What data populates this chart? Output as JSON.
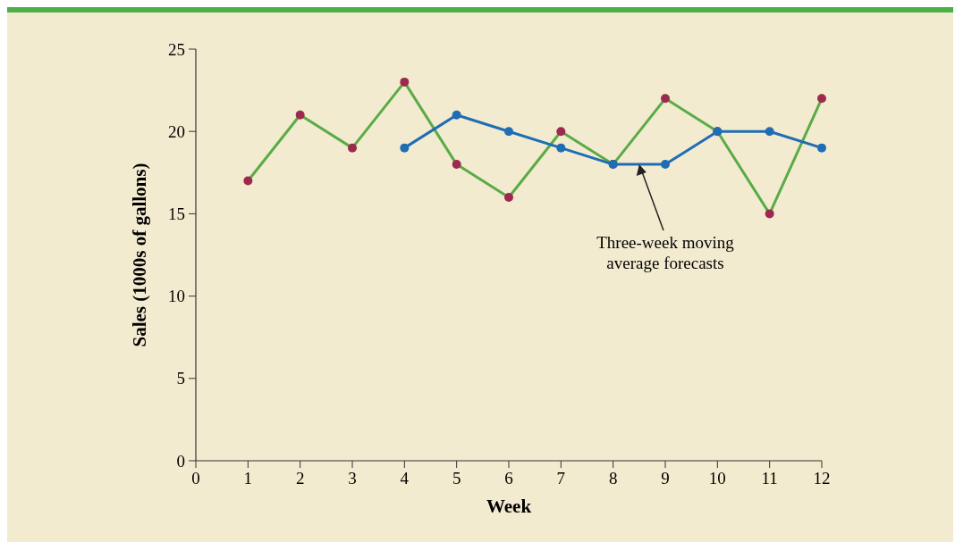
{
  "chart_data": {
    "type": "line",
    "xlabel": "Week",
    "ylabel": "Sales (1000s of gallons)",
    "x": [
      1,
      2,
      3,
      4,
      5,
      6,
      7,
      8,
      9,
      10,
      11,
      12
    ],
    "series": [
      {
        "color": "#5aab46",
        "colors": [
          "#9b2a4e",
          "#9b2a4e",
          "#9b2a4e",
          "#9b2a4e",
          "#9b2a4e",
          "#9b2a4e",
          "#9b2a4e",
          "#9b2a4e",
          "#9b2a4e",
          "#9b2a4e",
          "#9b2a4e",
          "#9b2a4e"
        ],
        "values": [
          17,
          21,
          19,
          23,
          18,
          16,
          20,
          18,
          22,
          20,
          15,
          22
        ]
      },
      {
        "color": "#1f6db5",
        "values": [
          null,
          null,
          null,
          19,
          21,
          20,
          19,
          18,
          18,
          20,
          20,
          19
        ]
      }
    ],
    "xlim": [
      0,
      12
    ],
    "xticks": [
      0,
      1,
      2,
      3,
      4,
      5,
      6,
      7,
      8,
      9,
      10,
      11,
      12
    ],
    "ylim": [
      0,
      25
    ],
    "yticks": [
      0,
      5,
      10,
      15,
      20,
      25
    ],
    "grid": false,
    "marker": "circle",
    "line_style": "solid",
    "annotations": [
      {
        "text": "Three-week moving average forecasts",
        "x": 8.5,
        "y": 18
      }
    ]
  }
}
